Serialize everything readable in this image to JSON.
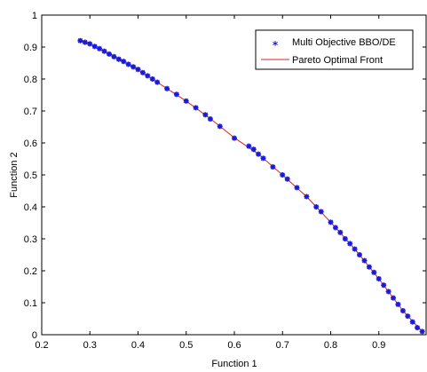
{
  "chart_data": {
    "type": "scatter",
    "title": "",
    "xlabel": "Function 1",
    "ylabel": "Function 2",
    "xlim": [
      0.2,
      1.0
    ],
    "ylim": [
      0,
      1
    ],
    "xticks": [
      "0.2",
      "0.3",
      "0.4",
      "0.5",
      "0.6",
      "0.7",
      "0.8",
      "0.9"
    ],
    "yticks": [
      "0",
      "0.1",
      "0.2",
      "0.3",
      "0.4",
      "0.5",
      "0.6",
      "0.7",
      "0.8",
      "0.9",
      "1"
    ],
    "grid": false,
    "legend_position": "top-right",
    "series": [
      {
        "name": "Multi Objective BBO/DE",
        "kind": "scatter",
        "marker": "asterisk",
        "color": "#1a1adb",
        "points": [
          [
            0.28,
            0.92
          ],
          [
            0.29,
            0.915
          ],
          [
            0.3,
            0.91
          ],
          [
            0.31,
            0.902
          ],
          [
            0.32,
            0.895
          ],
          [
            0.33,
            0.887
          ],
          [
            0.34,
            0.878
          ],
          [
            0.35,
            0.87
          ],
          [
            0.36,
            0.862
          ],
          [
            0.37,
            0.855
          ],
          [
            0.38,
            0.846
          ],
          [
            0.39,
            0.838
          ],
          [
            0.4,
            0.83
          ],
          [
            0.41,
            0.82
          ],
          [
            0.42,
            0.81
          ],
          [
            0.43,
            0.8
          ],
          [
            0.44,
            0.79
          ],
          [
            0.46,
            0.77
          ],
          [
            0.48,
            0.752
          ],
          [
            0.5,
            0.731
          ],
          [
            0.52,
            0.71
          ],
          [
            0.54,
            0.688
          ],
          [
            0.55,
            0.675
          ],
          [
            0.57,
            0.652
          ],
          [
            0.6,
            0.615
          ],
          [
            0.63,
            0.59
          ],
          [
            0.64,
            0.58
          ],
          [
            0.65,
            0.565
          ],
          [
            0.66,
            0.552
          ],
          [
            0.68,
            0.525
          ],
          [
            0.7,
            0.5
          ],
          [
            0.71,
            0.487
          ],
          [
            0.73,
            0.46
          ],
          [
            0.75,
            0.432
          ],
          [
            0.77,
            0.4
          ],
          [
            0.78,
            0.385
          ],
          [
            0.8,
            0.352
          ],
          [
            0.81,
            0.335
          ],
          [
            0.82,
            0.32
          ],
          [
            0.83,
            0.3
          ],
          [
            0.84,
            0.285
          ],
          [
            0.85,
            0.268
          ],
          [
            0.86,
            0.25
          ],
          [
            0.87,
            0.232
          ],
          [
            0.88,
            0.212
          ],
          [
            0.89,
            0.195
          ],
          [
            0.9,
            0.175
          ],
          [
            0.91,
            0.155
          ],
          [
            0.92,
            0.135
          ],
          [
            0.93,
            0.115
          ],
          [
            0.94,
            0.095
          ],
          [
            0.95,
            0.075
          ],
          [
            0.96,
            0.058
          ],
          [
            0.97,
            0.04
          ],
          [
            0.98,
            0.022
          ],
          [
            0.99,
            0.01
          ]
        ]
      },
      {
        "name": "Pareto Optimal Front",
        "kind": "line",
        "color": "#e02020",
        "points": [
          [
            0.28,
            0.92
          ],
          [
            0.3,
            0.908
          ],
          [
            0.35,
            0.871
          ],
          [
            0.4,
            0.829
          ],
          [
            0.45,
            0.78
          ],
          [
            0.5,
            0.731
          ],
          [
            0.55,
            0.676
          ],
          [
            0.6,
            0.616
          ],
          [
            0.65,
            0.565
          ],
          [
            0.7,
            0.5
          ],
          [
            0.75,
            0.432
          ],
          [
            0.8,
            0.352
          ],
          [
            0.85,
            0.268
          ],
          [
            0.9,
            0.175
          ],
          [
            0.95,
            0.075
          ],
          [
            0.99,
            0.01
          ]
        ]
      }
    ]
  }
}
